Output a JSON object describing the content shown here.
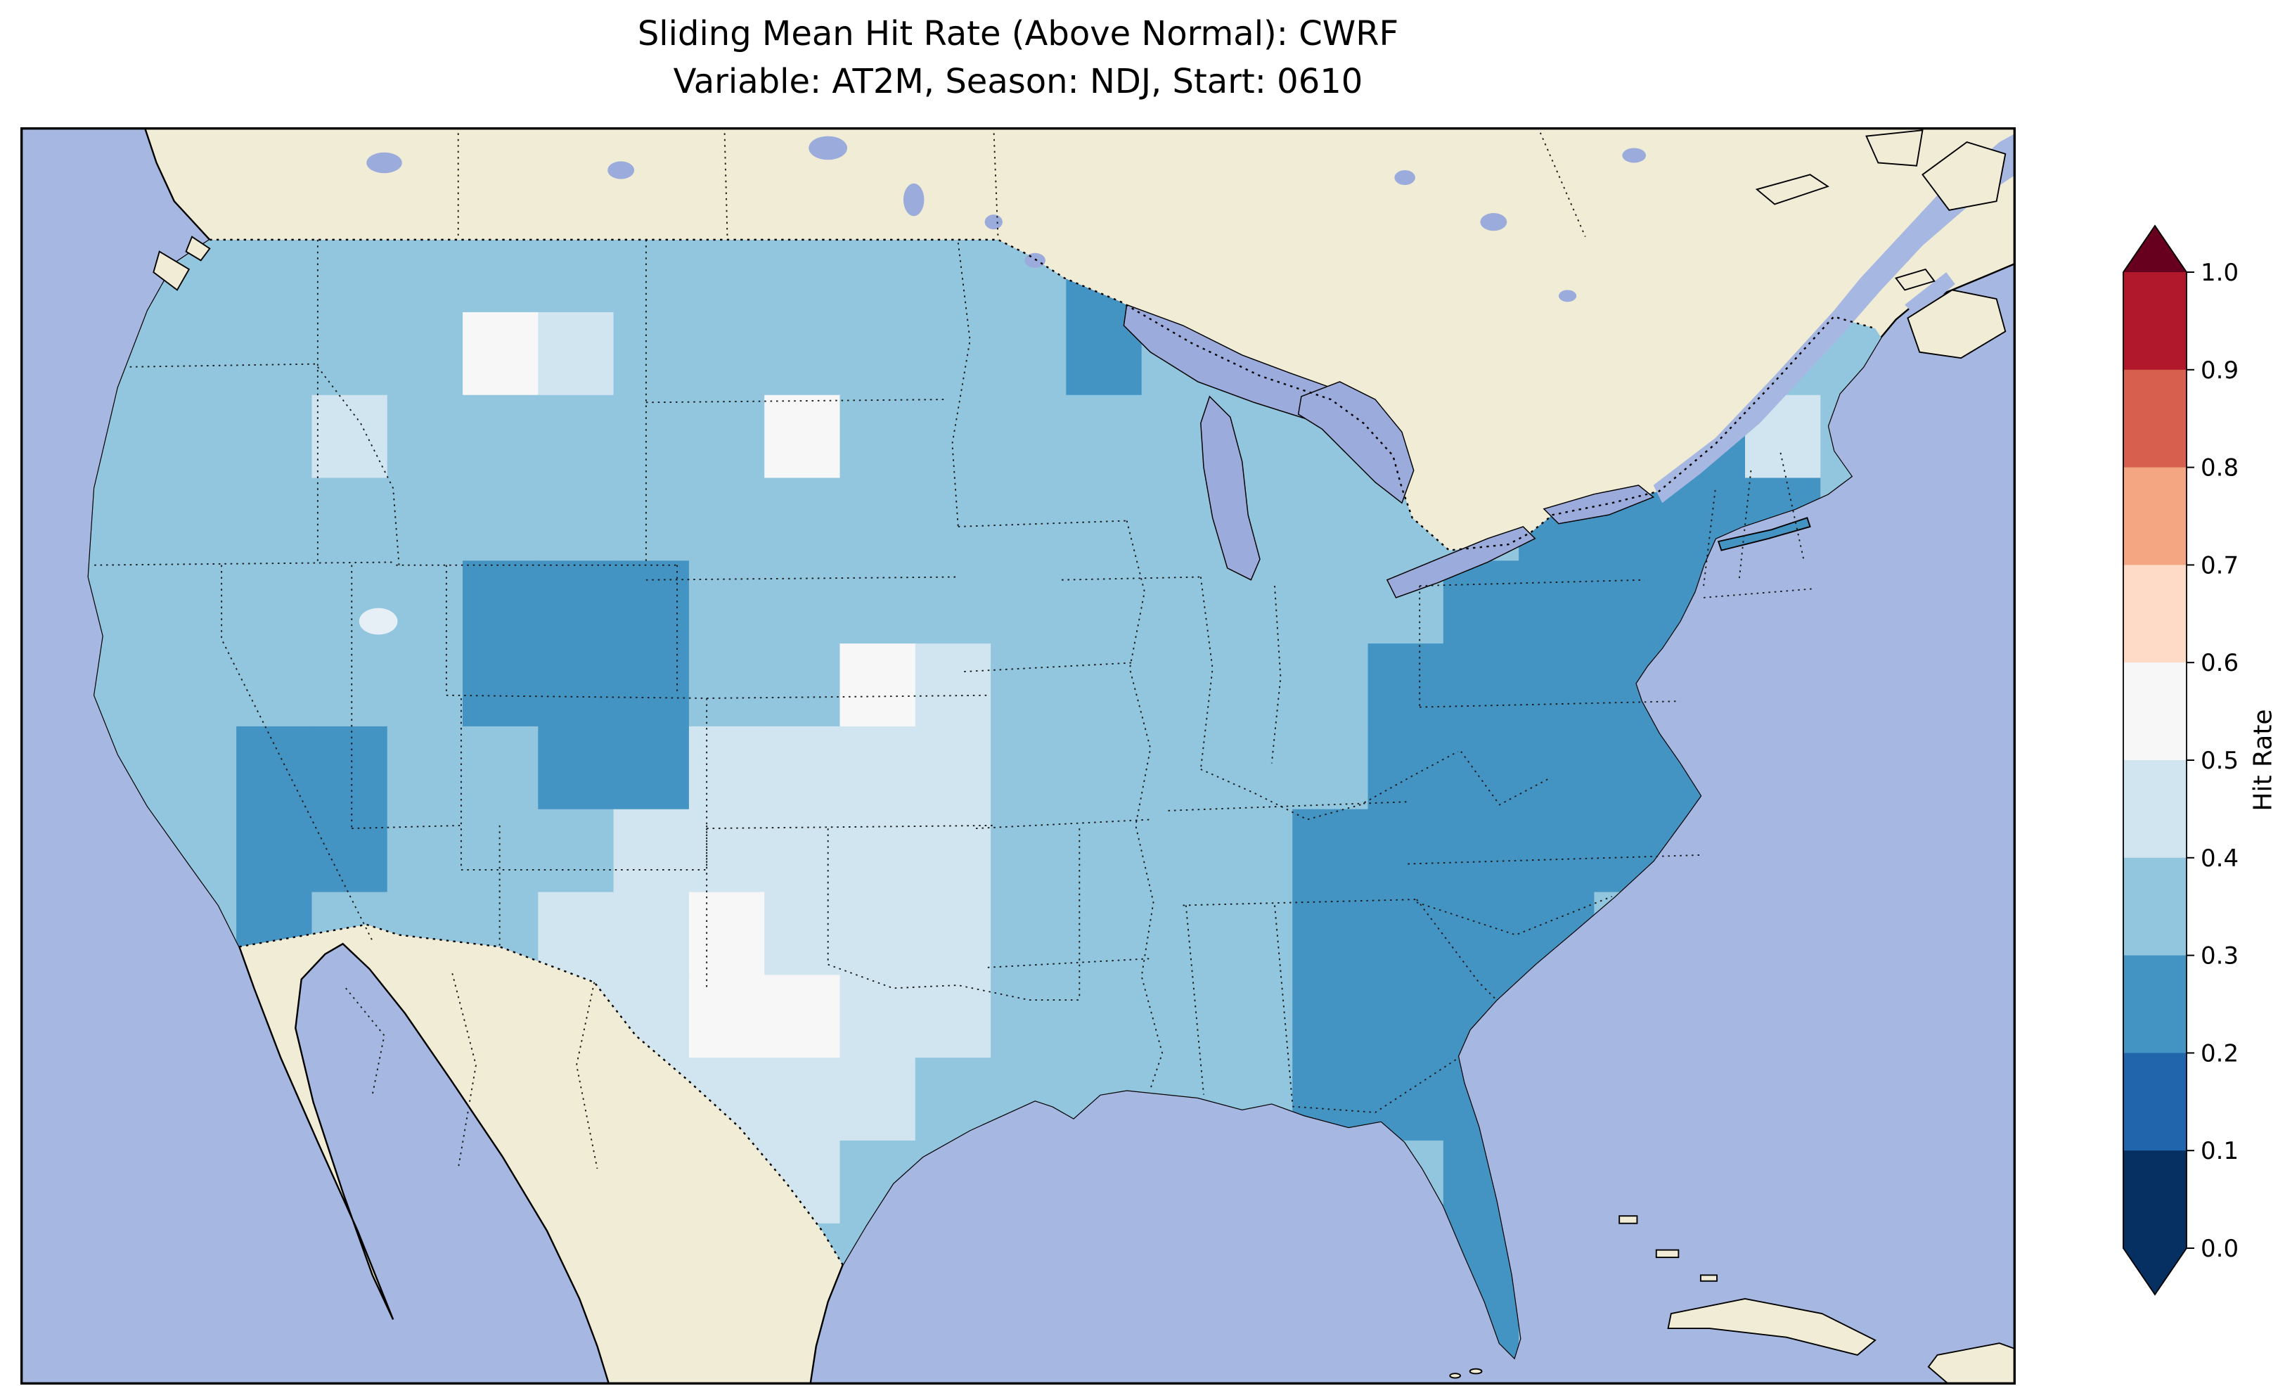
{
  "title": {
    "line1": "Sliding Mean Hit Rate (Above Normal): CWRF",
    "line2": "Variable: AT2M, Season: NDJ, Start: 0610"
  },
  "colors": {
    "background": "#ffffff",
    "ocean": "#a6b7e2",
    "lake": "#9aabdc",
    "land": "#f0ecd6",
    "coastline": "#000000",
    "map_frame": "#000000",
    "salt_lake": "#e6eef6"
  },
  "chart_data": {
    "type": "heatmap",
    "title": "Sliding Mean Hit Rate (Above Normal): CWRF",
    "subtitle": "Variable: AT2M, Season: NDJ, Start: 0610",
    "model": "CWRF",
    "variable": "AT2M",
    "season": "NDJ",
    "start": "0610",
    "region": "Continental United States",
    "colorbar": {
      "label": "Hit Rate",
      "range": [
        0.0,
        1.0
      ],
      "extend": "both",
      "tick_labels_top_to_bottom": [
        "1.0",
        "0.9",
        "0.8",
        "0.7",
        "0.6",
        "0.5",
        "0.4",
        "0.3",
        "0.2",
        "0.1",
        "0.0"
      ],
      "interval_colors_top_to_bottom": [
        "#b2182b",
        "#d6604d",
        "#f4a582",
        "#fddbc7",
        "#f7f7f7",
        "#d1e5f0",
        "#92c5de",
        "#4393c3",
        "#2166ac",
        "#053061"
      ],
      "over_color": "#67001f",
      "under_color": "#053061"
    },
    "grid": {
      "note": "Estimated hit-rate classes on a coarse 24x14 grid over CONUS, listed west-to-east within each row, rows north-to-south; values read from map colors.",
      "class_values": {
        "a": 0.25,
        "b": 0.35,
        "c": 0.45,
        "d": 0.55
      },
      "class_colors": {
        "a": "#4393c3",
        "b": "#92c5de",
        "c": "#d1e5f0",
        "d": "#f7f7f7"
      },
      "rows": [
        "bbbbbbbbbbbbbaabbbbbbbcb",
        "bbbbbdcbbbbbbabbbbbbbbbb",
        "bbbcbbbbbdbbbbbbbbbbaacb",
        "bbbbbbbbbbbbbbbbbbbaaaab",
        "bbbbbaaabbbbbbbbbbaaaabb",
        "bbbbbaaabbdcbbbbbaaaaabb",
        "bbaabbaaccccbbbbbaaaaabb",
        "bbaabbbcccccbbbbaaaaaabb",
        "bbabbbccdcccbbbbaaaabbbb",
        "bbbbbbccddccbbbbaaaabbbb",
        "bbbbbbbccccbbbbbaaabbbbb",
        "bbbbbbbbccbbbbbbbbaabbbb",
        "bbbbbbbbbbbbbbbbbbaabbbb",
        "bbbbbbbbbbbbbbbbbbabbbbb"
      ]
    },
    "observations": {
      "dominant_range": "0.3-0.4 over most of the CONUS domain",
      "lower_0.2_0.3": "Southeast (GA, SC, NC, FL, VA, WV), Mid-Atlantic and Northeast (PA, NY, New England), central Colorado Rockies, Arizona, northern Minnesota",
      "higher_0.4_0.6": "Texas and the southern Great Plains, with near-white 0.5-0.6 patches in Montana, South Dakota, Kansas/Nebraska and central Texas"
    }
  }
}
